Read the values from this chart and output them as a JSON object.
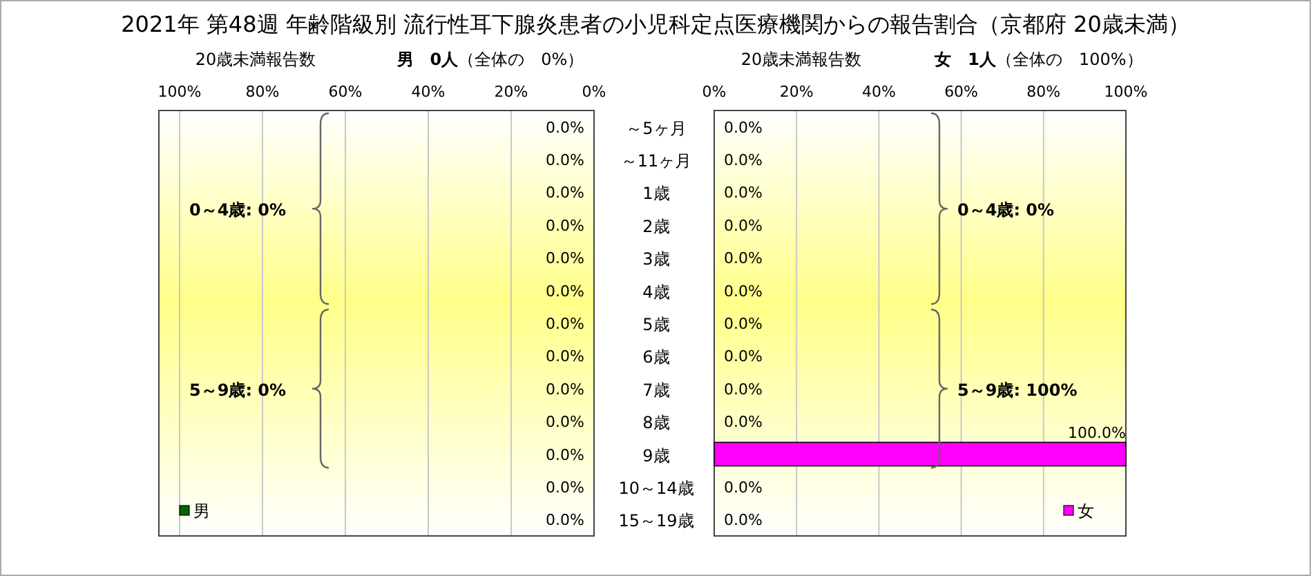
{
  "chart_data": [
    {
      "type": "bar",
      "orientation": "horizontal",
      "title": "2021年 第48週 年齢階級別 流行性耳下腺炎患者の小児科定点医療機関からの報告割合（京都府 20歳未満）",
      "subtitle": "20歳未満報告数",
      "categories": [
        "～5ヶ月",
        "～11ヶ月",
        "1歳",
        "2歳",
        "3歳",
        "4歳",
        "5歳",
        "6歳",
        "7歳",
        "8歳",
        "9歳",
        "10～14歳",
        "15～19歳"
      ],
      "series": [
        {
          "name": "男",
          "color": "#006400",
          "values": [
            0,
            0,
            0,
            0,
            0,
            0,
            0,
            0,
            0,
            0,
            0,
            0,
            0
          ],
          "value_labels": [
            "0.0%",
            "0.0%",
            "0.0%",
            "0.0%",
            "0.0%",
            "0.0%",
            "0.0%",
            "0.0%",
            "0.0%",
            "0.0%",
            "0.0%",
            "0.0%",
            "0.0%"
          ]
        }
      ],
      "xlim": [
        105,
        0
      ],
      "xticks": [
        {
          "value": 100,
          "label": "100%"
        },
        {
          "value": 80,
          "label": "80%"
        },
        {
          "value": 60,
          "label": "60%"
        },
        {
          "value": 40,
          "label": "40%"
        },
        {
          "value": 20,
          "label": "20%"
        },
        {
          "value": 0,
          "label": "0%"
        }
      ],
      "grid": "x",
      "legend": "bottom left",
      "annotations": [
        "**男　0人**（全体の　0%）",
        "0～4歳: 0%",
        "5～9歳: 0%"
      ]
    },
    {
      "type": "bar",
      "orientation": "horizontal",
      "subtitle": "20歳未満報告数",
      "series": [
        {
          "name": "女",
          "color": "#ff00ff",
          "values": [
            0,
            0,
            0,
            0,
            0,
            0,
            0,
            0,
            0,
            0,
            100,
            0,
            0
          ],
          "value_labels": [
            "0.0%",
            "0.0%",
            "0.0%",
            "0.0%",
            "0.0%",
            "0.0%",
            "0.0%",
            "0.0%",
            "0.0%",
            "0.0%",
            "100.0%",
            "0.0%",
            "0.0%"
          ]
        }
      ],
      "xlim": [
        0,
        100
      ],
      "xticks": [
        {
          "value": 0,
          "label": "0%"
        },
        {
          "value": 20,
          "label": "20%"
        },
        {
          "value": 40,
          "label": "40%"
        },
        {
          "value": 60,
          "label": "60%"
        },
        {
          "value": 80,
          "label": "80%"
        },
        {
          "value": 100,
          "label": "100%"
        }
      ],
      "grid": "x",
      "legend": "bottom right",
      "tick_labels": "x",
      "annotations": [
        "**女　1人**（全体の　100%）",
        "0～4歳: 0%",
        "5～9歳: 100%"
      ]
    }
  ]
}
